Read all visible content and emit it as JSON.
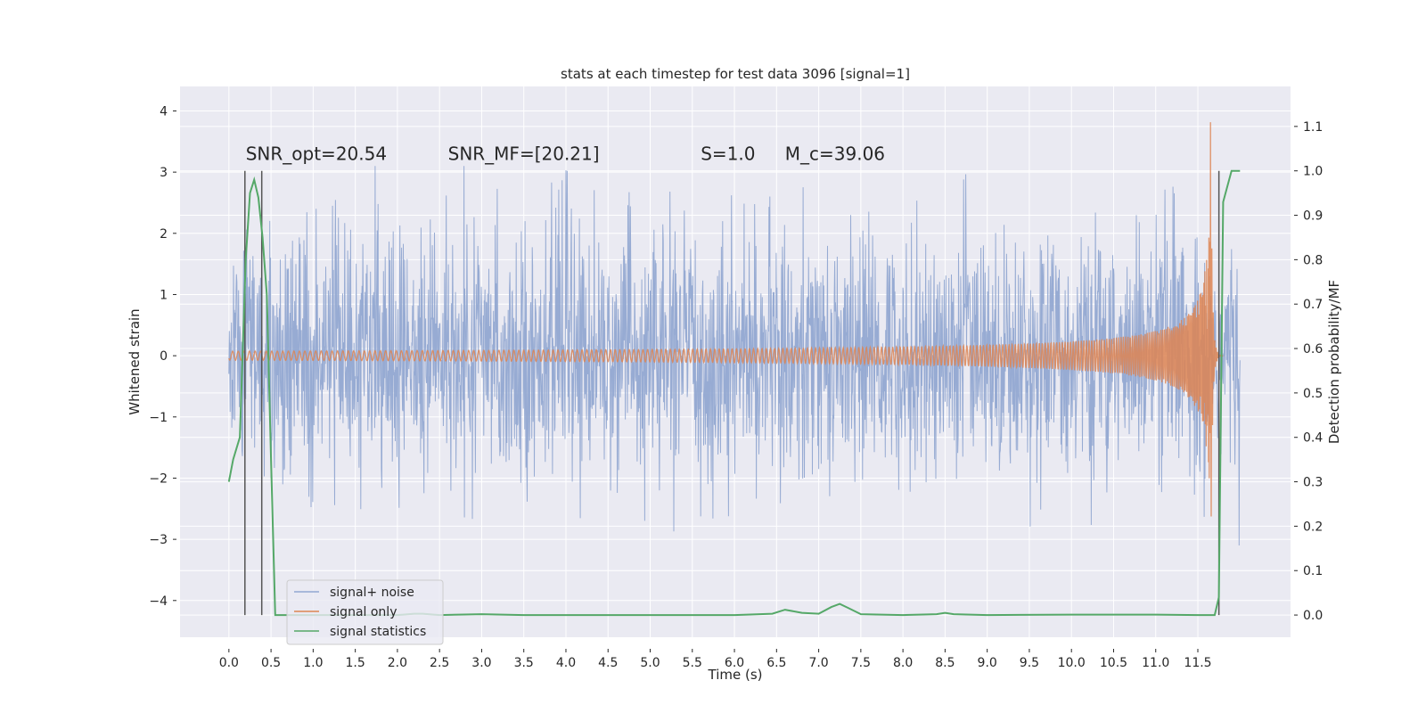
{
  "chart_data": {
    "type": "line",
    "title": "stats at each timestep for test data 3096 [signal=1]",
    "xlabel": "Time (s)",
    "ylabel": "Whitened strain",
    "y2label": "Detection probability/MF",
    "xlim": [
      -0.58,
      12.6
    ],
    "ylim": [
      -4.6,
      4.4
    ],
    "y2lim": [
      -0.05,
      1.19
    ],
    "xticks": [
      0.0,
      0.5,
      1.0,
      1.5,
      2.0,
      2.5,
      3.0,
      3.5,
      4.0,
      4.5,
      5.0,
      5.5,
      6.0,
      6.5,
      7.0,
      7.5,
      8.0,
      8.5,
      9.0,
      9.5,
      10.0,
      10.5,
      11.0,
      11.5
    ],
    "xtick_labels": [
      "0.0",
      "0.5",
      "1.0",
      "1.5",
      "2.0",
      "2.5",
      "3.0",
      "3.5",
      "4.0",
      "4.5",
      "5.0",
      "5.5",
      "6.0",
      "6.5",
      "7.0",
      "7.5",
      "8.0",
      "8.5",
      "9.0",
      "9.5",
      "10.0",
      "10.5",
      "11.0",
      "11.5"
    ],
    "yticks": [
      -4,
      -3,
      -2,
      -1,
      0,
      1,
      2,
      3,
      4
    ],
    "ytick_labels": [
      "−4",
      "−3",
      "−2",
      "−1",
      "0",
      "1",
      "2",
      "3",
      "4"
    ],
    "y2ticks": [
      0.0,
      0.1,
      0.2,
      0.3,
      0.4,
      0.5,
      0.6,
      0.7,
      0.8,
      0.9,
      1.0,
      1.1
    ],
    "y2tick_labels": [
      "0.0",
      "0.1",
      "0.2",
      "0.3",
      "0.4",
      "0.5",
      "0.6",
      "0.7",
      "0.8",
      "0.9",
      "1.0",
      "1.1"
    ],
    "grid": true,
    "legend_position": "lower-left",
    "annotations": [
      {
        "text": "SNR_opt=20.54",
        "x": 0.2,
        "y": 3.2
      },
      {
        "text": "SNR_MF=[20.21]",
        "x": 2.6,
        "y": 3.2
      },
      {
        "text": "S=1.0",
        "x": 5.6,
        "y": 3.2
      },
      {
        "text": "M_c=39.06",
        "x": 6.6,
        "y": 3.2
      }
    ],
    "series": [
      {
        "name": "signal+ noise",
        "axis": "left",
        "color": "#92a8d1",
        "style": "noise",
        "description": "whitened strain noise, approx within -2 to 2 with spikes to about ±3",
        "x_range": [
          0.0,
          12.0
        ],
        "amplitude_typical": 1.15,
        "amplitude_peak": 3.1
      },
      {
        "name": "signal only",
        "axis": "left",
        "color": "#dd8452",
        "style": "chirp",
        "description": "chirp with amplitude growing toward merger",
        "x_range": [
          0.0,
          11.8
        ],
        "merger_time": 11.65,
        "peak_amplitude": 4.0
      },
      {
        "name": "signal statistics",
        "axis": "right",
        "color": "#55a868",
        "x": [
          0.0,
          0.05,
          0.13,
          0.2,
          0.25,
          0.3,
          0.35,
          0.4,
          0.45,
          0.5,
          0.55,
          0.6,
          1.0,
          2.0,
          2.2,
          2.3,
          2.5,
          3.0,
          3.5,
          4.0,
          5.0,
          6.0,
          6.45,
          6.6,
          6.8,
          7.0,
          7.15,
          7.25,
          7.35,
          7.5,
          8.0,
          8.4,
          8.5,
          8.6,
          9.0,
          10.0,
          11.0,
          11.5,
          11.7,
          11.75,
          11.8,
          11.9,
          12.0
        ],
        "y": [
          0.3,
          0.35,
          0.4,
          0.8,
          0.95,
          0.98,
          0.94,
          0.85,
          0.72,
          0.35,
          0.0,
          0.0,
          0.0,
          0.0,
          0.003,
          0.003,
          0.0,
          0.002,
          0.0,
          0.0,
          0.0,
          0.0,
          0.003,
          0.012,
          0.005,
          0.003,
          0.018,
          0.025,
          0.016,
          0.002,
          0.0,
          0.002,
          0.005,
          0.002,
          0.0,
          0.001,
          0.001,
          0.0,
          0.0,
          0.04,
          0.93,
          1.0,
          1.0
        ]
      }
    ],
    "vertical_lines": [
      {
        "x": 0.19,
        "color": "#555555"
      },
      {
        "x": 0.39,
        "color": "#555555"
      },
      {
        "x": 11.75,
        "color": "#555555"
      }
    ]
  }
}
